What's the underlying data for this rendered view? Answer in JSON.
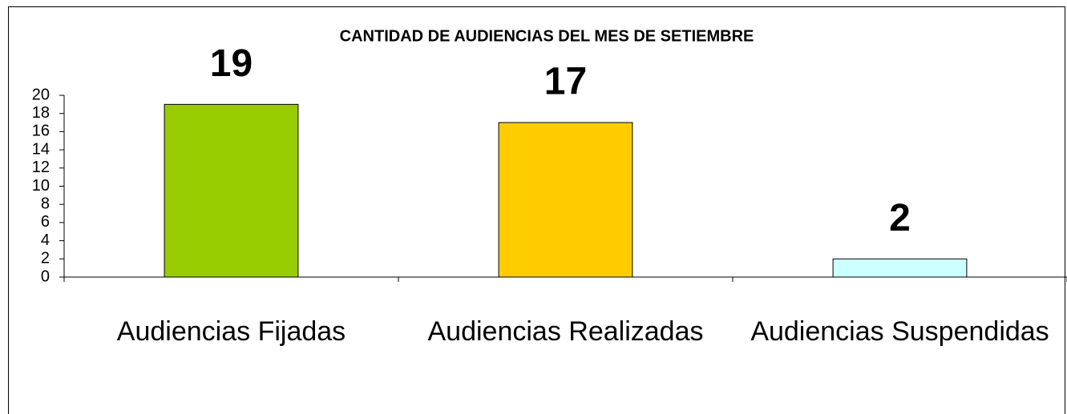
{
  "chart_data": {
    "type": "bar",
    "title": "CANTIDAD DE AUDIENCIAS DEL MES DE SETIEMBRE",
    "categories": [
      "Audiencias Fijadas",
      "Audiencias Realizadas",
      "Audiencias Suspendidas"
    ],
    "values": [
      19,
      17,
      2
    ],
    "colors": [
      "#99cc00",
      "#ffcc00",
      "#ccffff"
    ],
    "ylim": [
      0,
      20
    ],
    "yticks": [
      0,
      2,
      4,
      6,
      8,
      10,
      12,
      14,
      16,
      18,
      20
    ],
    "grid": false
  }
}
